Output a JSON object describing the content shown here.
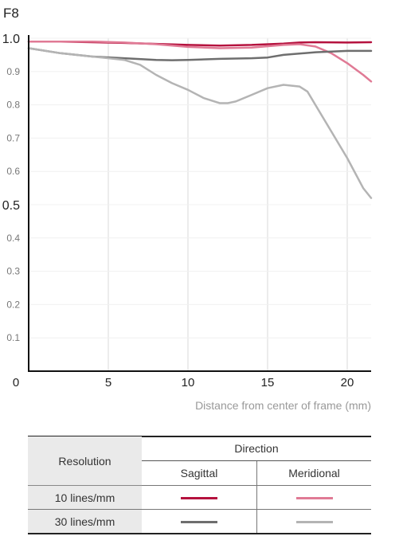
{
  "chart_data": {
    "type": "line",
    "title": "F8",
    "xlabel": "Distance from center of frame (mm)",
    "ylabel": "",
    "xlim": [
      0,
      21.5
    ],
    "ylim": [
      0,
      1.0
    ],
    "x_ticks": [
      0,
      5,
      10,
      15,
      20
    ],
    "x_tick_labels": [
      "0",
      "5",
      "10",
      "15",
      "20"
    ],
    "y_ticks": [
      0.1,
      0.2,
      0.3,
      0.4,
      0.5,
      0.6,
      0.7,
      0.8,
      0.9,
      1.0
    ],
    "y_tick_labels": [
      "0.1",
      "0.2",
      "0.3",
      "0.4",
      "0.5",
      "0.6",
      "0.7",
      "0.8",
      "0.9",
      "1.0"
    ],
    "grid": "vertical",
    "series": [
      {
        "id": "sag10",
        "color": "#b5123e",
        "width": 2.5,
        "x": [
          0,
          2,
          4,
          6,
          8,
          10,
          12,
          14,
          16,
          17,
          18,
          20,
          21.5
        ],
        "y": [
          0.99,
          0.99,
          0.988,
          0.986,
          0.983,
          0.98,
          0.978,
          0.98,
          0.984,
          0.987,
          0.988,
          0.987,
          0.988
        ]
      },
      {
        "id": "mer10",
        "color": "#e07a95",
        "width": 2.5,
        "x": [
          0,
          2,
          4,
          6,
          8,
          10,
          12,
          14,
          16,
          17,
          18,
          19,
          20,
          21,
          21.5
        ],
        "y": [
          0.99,
          0.99,
          0.99,
          0.987,
          0.982,
          0.974,
          0.97,
          0.972,
          0.98,
          0.982,
          0.975,
          0.955,
          0.925,
          0.89,
          0.87
        ]
      },
      {
        "id": "sag30",
        "color": "#6e6e6e",
        "width": 2.5,
        "x": [
          0,
          2,
          4,
          6,
          8,
          9,
          10,
          12,
          14,
          15,
          16,
          18,
          20,
          21.5
        ],
        "y": [
          0.97,
          0.955,
          0.945,
          0.94,
          0.935,
          0.934,
          0.935,
          0.938,
          0.94,
          0.942,
          0.95,
          0.958,
          0.962,
          0.962
        ]
      },
      {
        "id": "mer30",
        "color": "#b4b4b4",
        "width": 2.5,
        "x": [
          0,
          2,
          4,
          6,
          7,
          8,
          9,
          10,
          11,
          12,
          12.5,
          13,
          14,
          15,
          16,
          17,
          17.5,
          18,
          19,
          20,
          21,
          21.5
        ],
        "y": [
          0.97,
          0.955,
          0.945,
          0.935,
          0.92,
          0.89,
          0.865,
          0.845,
          0.82,
          0.805,
          0.805,
          0.81,
          0.83,
          0.85,
          0.86,
          0.855,
          0.84,
          0.8,
          0.72,
          0.64,
          0.55,
          0.52
        ]
      }
    ]
  },
  "legend": {
    "resolution_header": "Resolution",
    "direction_header": "Direction",
    "sagittal_label": "Sagittal",
    "meridional_label": "Meridional",
    "rows": [
      {
        "label": "10 lines/mm",
        "sagittal_color": "#b5123e",
        "meridional_color": "#e07a95"
      },
      {
        "label": "30 lines/mm",
        "sagittal_color": "#6e6e6e",
        "meridional_color": "#b4b4b4"
      }
    ]
  }
}
